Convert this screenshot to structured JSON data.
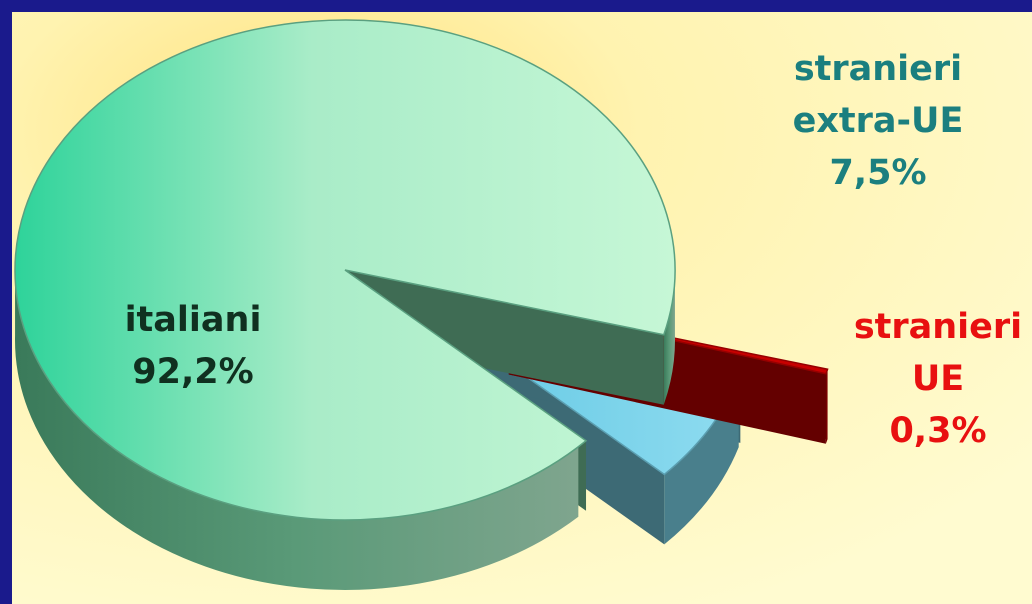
{
  "chart_data": {
    "type": "pie",
    "style": "3d-exploded",
    "slices": [
      {
        "name_lines": [
          "italiani"
        ],
        "value": 92.2,
        "value_label": "92,2%",
        "color": "#a8efc9",
        "label_color": "#103020"
      },
      {
        "name_lines": [
          "stranieri",
          "extra-UE"
        ],
        "value": 7.5,
        "value_label": "7,5%",
        "color": "#79d3ea",
        "label_color": "#1b7f7f"
      },
      {
        "name_lines": [
          "stranieri",
          "UE"
        ],
        "value": 0.3,
        "value_label": "0,3%",
        "color": "#c80000",
        "label_color": "#e81010"
      }
    ],
    "colors": {
      "background": "#fff7bd",
      "frame": "#1a1a8c"
    }
  }
}
